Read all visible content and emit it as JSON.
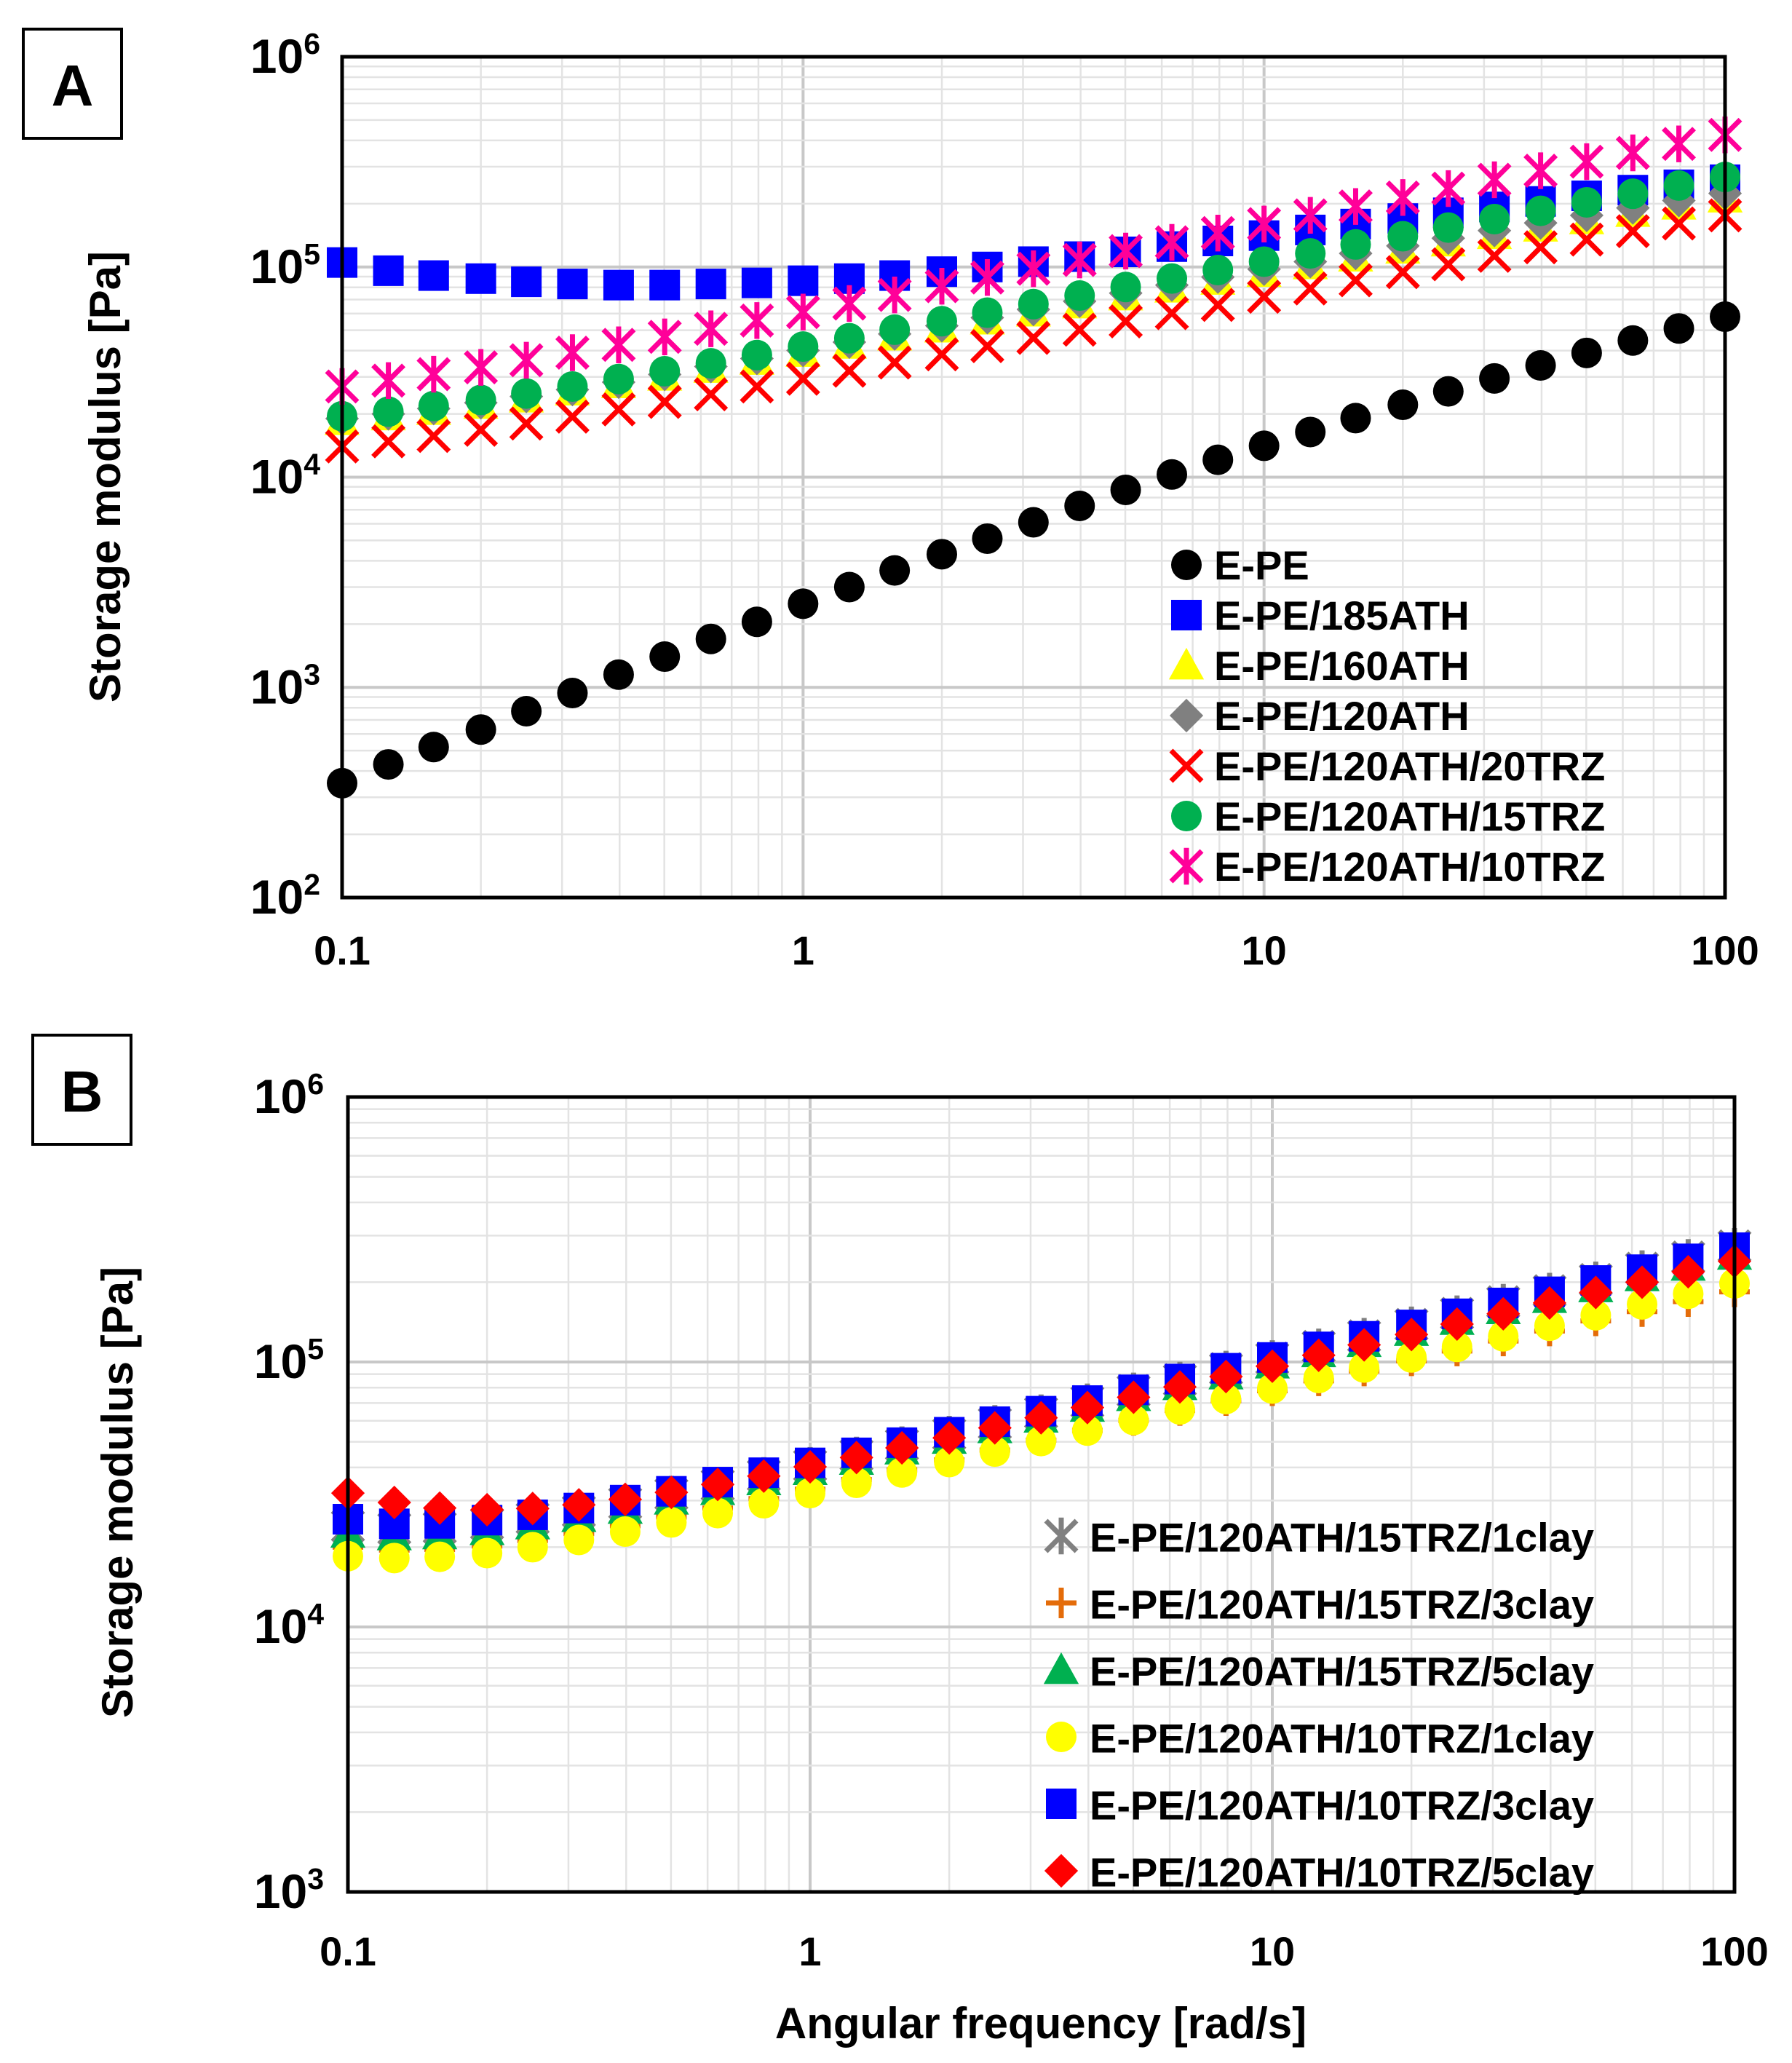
{
  "figure": {
    "x_axis_title": "Angular frequency [rad/s]"
  },
  "chart_data": [
    {
      "type": "scatter",
      "panel_label": "A",
      "xscale": "log",
      "yscale": "log",
      "xlim": [
        0.1,
        100
      ],
      "ylim": [
        100,
        1000000
      ],
      "xlabel": "",
      "ylabel": "Storage modulus [Pa]",
      "x_ticks": [
        "0.1",
        "1",
        "10",
        "100"
      ],
      "y_ticks": [
        {
          "base": "10",
          "exp": "2"
        },
        {
          "base": "10",
          "exp": "3"
        },
        {
          "base": "10",
          "exp": "4"
        },
        {
          "base": "10",
          "exp": "5"
        },
        {
          "base": "10",
          "exp": "6"
        }
      ],
      "legend_position": "bottom-right",
      "grid": true,
      "x": [
        0.1,
        0.126,
        0.158,
        0.2,
        0.251,
        0.316,
        0.398,
        0.501,
        0.631,
        0.794,
        1.0,
        1.26,
        1.58,
        2.0,
        2.51,
        3.16,
        3.98,
        5.01,
        6.31,
        7.94,
        10.0,
        12.6,
        15.8,
        20.0,
        25.1,
        31.6,
        39.8,
        50.1,
        63.1,
        79.4,
        100
      ],
      "series": [
        {
          "name": "E-PE",
          "marker": "circle",
          "color": "#000000",
          "values": [
            350,
            430,
            520,
            630,
            770,
            940,
            1150,
            1400,
            1700,
            2050,
            2500,
            3000,
            3600,
            4300,
            5100,
            6100,
            7300,
            8700,
            10300,
            12100,
            14100,
            16400,
            19100,
            22100,
            25600,
            29500,
            34000,
            39000,
            44700,
            51000,
            58000
          ]
        },
        {
          "name": "E-PE/185ATH",
          "marker": "square",
          "color": "#0000ff",
          "values": [
            105000,
            96000,
            91000,
            88000,
            85000,
            83000,
            82000,
            82000,
            83000,
            84000,
            86000,
            88000,
            91000,
            95000,
            100000,
            106000,
            112000,
            118000,
            125000,
            133000,
            141000,
            150000,
            160000,
            170000,
            181000,
            193000,
            205000,
            218000,
            232000,
            246000,
            260000
          ]
        },
        {
          "name": "E-PE/160ATH",
          "marker": "triangle",
          "color": "#ffff00",
          "values": [
            18500,
            19500,
            20700,
            22100,
            23700,
            25600,
            27700,
            30100,
            32800,
            35800,
            39100,
            42700,
            46700,
            51000,
            55700,
            60800,
            66400,
            72500,
            79000,
            86100,
            93800,
            102000,
            111000,
            121000,
            131000,
            142000,
            154000,
            167000,
            181000,
            196000,
            212000
          ]
        },
        {
          "name": "E-PE/120ATH",
          "marker": "diamond",
          "color": "#808080",
          "values": [
            19000,
            20000,
            21200,
            22600,
            24200,
            26100,
            28300,
            30800,
            33600,
            36700,
            40100,
            43900,
            48000,
            52500,
            57400,
            62800,
            68700,
            75100,
            82000,
            89500,
            97600,
            106000,
            116000,
            126000,
            137000,
            149000,
            162000,
            176000,
            191000,
            207000,
            224000
          ]
        },
        {
          "name": "E-PE/120ATH/20TRZ",
          "marker": "x",
          "color": "#ff0000",
          "values": [
            14000,
            14800,
            15700,
            16800,
            18000,
            19400,
            21000,
            22800,
            24800,
            27000,
            29400,
            32100,
            35100,
            38400,
            42000,
            46000,
            50300,
            55100,
            60300,
            66000,
            72200,
            79000,
            86400,
            94500,
            103000,
            113000,
            124000,
            135000,
            148000,
            161000,
            176000
          ]
        },
        {
          "name": "E-PE/120ATH/15TRZ",
          "marker": "circle",
          "color": "#00b050",
          "values": [
            19500,
            20500,
            21800,
            23300,
            25000,
            27000,
            29300,
            31900,
            34800,
            38100,
            41800,
            45800,
            50300,
            55200,
            60600,
            66600,
            73100,
            80300,
            88100,
            96700,
            106000,
            116000,
            128000,
            140000,
            154000,
            169000,
            185000,
            203000,
            223000,
            244000,
            268000
          ]
        },
        {
          "name": "E-PE/120ATH/10TRZ",
          "marker": "star",
          "color": "#ff0099",
          "values": [
            27000,
            28800,
            30900,
            33300,
            36000,
            39100,
            42600,
            46500,
            50800,
            55600,
            61000,
            67000,
            73600,
            81000,
            89100,
            98100,
            108000,
            119000,
            131000,
            145000,
            160000,
            176000,
            194000,
            214000,
            236000,
            260000,
            287000,
            317000,
            349000,
            385000,
            425000
          ]
        }
      ]
    },
    {
      "type": "scatter",
      "panel_label": "B",
      "xscale": "log",
      "yscale": "log",
      "xlim": [
        0.1,
        100
      ],
      "ylim": [
        1000,
        1000000
      ],
      "xlabel": "Angular frequency [rad/s]",
      "ylabel": "Storage modulus [Pa]",
      "x_ticks": [
        "0.1",
        "1",
        "10",
        "100"
      ],
      "y_ticks": [
        {
          "base": "10",
          "exp": "3"
        },
        {
          "base": "10",
          "exp": "4"
        },
        {
          "base": "10",
          "exp": "5"
        },
        {
          "base": "10",
          "exp": "6"
        }
      ],
      "legend_position": "bottom-right",
      "grid": true,
      "x": [
        0.1,
        0.126,
        0.158,
        0.2,
        0.251,
        0.316,
        0.398,
        0.501,
        0.631,
        0.794,
        1.0,
        1.26,
        1.58,
        2.0,
        2.51,
        3.16,
        3.98,
        5.01,
        6.31,
        7.94,
        10.0,
        12.6,
        15.8,
        20.0,
        25.1,
        31.6,
        39.8,
        50.1,
        63.1,
        79.4,
        100
      ],
      "series": [
        {
          "name": "E-PE/120ATH/15TRZ/1clay",
          "marker": "star",
          "color": "#808080",
          "values": [
            24000,
            23500,
            23700,
            24500,
            25700,
            27300,
            29300,
            31700,
            34300,
            37300,
            40700,
            44500,
            48700,
            53400,
            58600,
            64300,
            70700,
            77700,
            85400,
            94000,
            103000,
            114000,
            125000,
            138000,
            152000,
            168000,
            185000,
            204000,
            225000,
            248000,
            273000
          ]
        },
        {
          "name": "E-PE/120ATH/15TRZ/3clay",
          "marker": "plus",
          "color": "#e46c0a",
          "values": [
            20000,
            19500,
            19600,
            20200,
            21200,
            22500,
            24100,
            26000,
            28100,
            30500,
            33100,
            36000,
            39200,
            42700,
            46500,
            50700,
            55200,
            60200,
            65600,
            71500,
            77900,
            84900,
            92500,
            101000,
            110000,
            120000,
            131000,
            143000,
            155000,
            169000,
            184000
          ]
        },
        {
          "name": "E-PE/120ATH/15TRZ/5clay",
          "marker": "triangle",
          "color": "#00b050",
          "values": [
            22500,
            22000,
            22200,
            23000,
            24200,
            25800,
            27700,
            30000,
            32600,
            35500,
            38800,
            42400,
            46400,
            50900,
            55800,
            61200,
            67200,
            73800,
            81100,
            89100,
            97900,
            108000,
            118000,
            130000,
            143000,
            157000,
            173000,
            190000,
            209000,
            229000,
            252000
          ]
        },
        {
          "name": "E-PE/120ATH/10TRZ/1clay",
          "marker": "circle",
          "color": "#ffff00",
          "values": [
            18500,
            18200,
            18400,
            19000,
            20000,
            21300,
            22900,
            24800,
            26900,
            29300,
            32000,
            35000,
            38300,
            41900,
            45900,
            50300,
            55100,
            60400,
            66200,
            72500,
            79400,
            87000,
            95300,
            104000,
            114000,
            125000,
            137000,
            150000,
            165000,
            181000,
            198000
          ]
        },
        {
          "name": "E-PE/120ATH/10TRZ/3clay",
          "marker": "square",
          "color": "#0000ff",
          "values": [
            25500,
            24500,
            24600,
            25300,
            26500,
            28100,
            30100,
            32500,
            35200,
            38200,
            41600,
            45400,
            49600,
            54300,
            59500,
            65200,
            71500,
            78500,
            86200,
            94700,
            104000,
            114000,
            125000,
            138000,
            152000,
            167000,
            184000,
            203000,
            223000,
            245000,
            270000
          ]
        },
        {
          "name": "E-PE/120ATH/10TRZ/5clay",
          "marker": "diamond",
          "color": "#ff0000",
          "values": [
            32000,
            29500,
            28100,
            27700,
            28000,
            28900,
            30300,
            32200,
            34500,
            37100,
            40200,
            43600,
            47400,
            51700,
            56400,
            61600,
            67300,
            73600,
            80500,
            88100,
            96400,
            106000,
            116000,
            127000,
            139000,
            152000,
            167000,
            183000,
            200000,
            219000,
            240000
          ]
        }
      ]
    }
  ]
}
